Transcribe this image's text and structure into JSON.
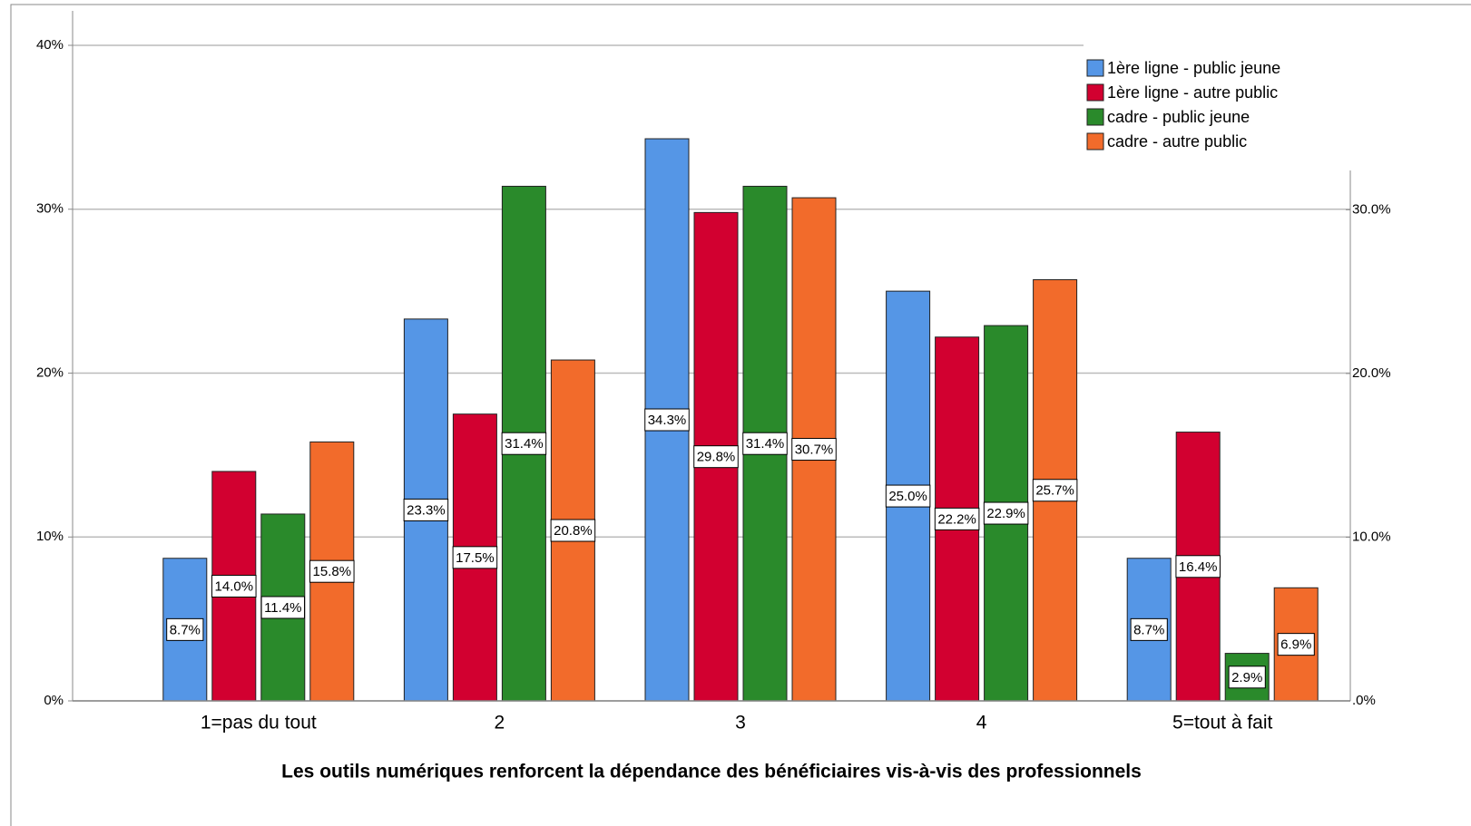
{
  "chart_data": {
    "type": "bar",
    "xlabel": "Les outils numériques renforcent la dépendance des bénéficiaires vis-à-vis des professionnels",
    "categories": [
      "1=pas du tout",
      "2",
      "3",
      "4",
      "5=tout à fait"
    ],
    "series": [
      {
        "name": "1ère ligne - public jeune",
        "color": "#5596e6",
        "values": [
          8.7,
          23.3,
          34.3,
          25.0,
          8.7
        ],
        "value_labels": [
          "8.7%",
          "23.3%",
          "34.3%",
          "25.0%",
          "8.7%"
        ]
      },
      {
        "name": "1ère ligne - autre public",
        "color": "#d20030",
        "values": [
          14.0,
          17.5,
          29.8,
          22.2,
          16.4
        ],
        "value_labels": [
          "14.0%",
          "17.5%",
          "29.8%",
          "22.2%",
          "16.4%"
        ]
      },
      {
        "name": "cadre - public jeune",
        "color": "#2a8a2b",
        "values": [
          11.4,
          31.4,
          31.4,
          22.9,
          2.9
        ],
        "value_labels": [
          "11.4%",
          "31.4%",
          "31.4%",
          "22.9%",
          "2.9%"
        ]
      },
      {
        "name": "cadre - autre public",
        "color": "#f26b2b",
        "values": [
          15.8,
          20.8,
          30.7,
          25.7,
          6.9
        ],
        "value_labels": [
          "15.8%",
          "20.8%",
          "30.7%",
          "25.7%",
          "6.9%"
        ]
      }
    ],
    "ylim": [
      0,
      40
    ],
    "yticks": [
      {
        "value": 0,
        "label": "0%"
      },
      {
        "value": 10,
        "label": "10%"
      },
      {
        "value": 20,
        "label": "20%"
      },
      {
        "value": 30,
        "label": "30%"
      },
      {
        "value": 40,
        "label": "40%"
      }
    ],
    "y2lim": [
      0,
      32.4
    ],
    "y2ticks": [
      {
        "value": 0,
        "label": ".0%"
      },
      {
        "value": 10,
        "label": "10.0%"
      },
      {
        "value": 20,
        "label": "20.0%"
      },
      {
        "value": 30,
        "label": "30.0%"
      }
    ],
    "grid": true,
    "legend": "upper right"
  }
}
